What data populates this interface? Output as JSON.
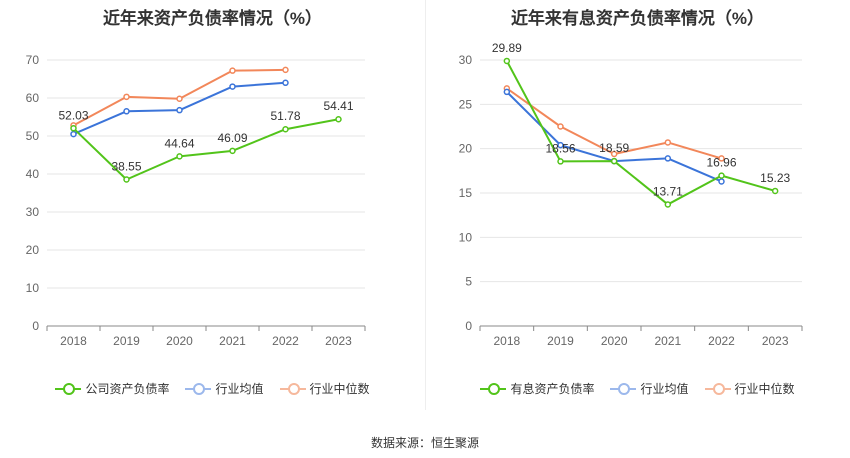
{
  "colors": {
    "company": "#52c41a",
    "industry_avg": "#3b74d9",
    "industry_median": "#f2875a"
  },
  "source_text": "数据来源：恒生聚源",
  "chart_data": [
    {
      "type": "line",
      "title": "近年来资产负债率情况（%）",
      "categories": [
        "2018",
        "2019",
        "2020",
        "2021",
        "2022",
        "2023"
      ],
      "ylim": [
        0,
        70
      ],
      "yticks": [
        0,
        10,
        20,
        30,
        40,
        50,
        60,
        70
      ],
      "grid": true,
      "legend_position": "bottom",
      "series": [
        {
          "name": "公司资产负债率",
          "values": [
            52.03,
            38.55,
            44.64,
            46.09,
            51.78,
            54.41
          ],
          "labels": [
            "52.03",
            "38.55",
            "44.64",
            "46.09",
            "51.78",
            "54.41"
          ]
        },
        {
          "name": "行业均值",
          "values": [
            50.5,
            56.5,
            56.8,
            63.0,
            64.0,
            null
          ]
        },
        {
          "name": "行业中位数",
          "values": [
            52.8,
            60.3,
            59.8,
            67.2,
            67.4,
            null
          ]
        }
      ]
    },
    {
      "type": "line",
      "title": "近年来有息资产负债率情况（%）",
      "categories": [
        "2018",
        "2019",
        "2020",
        "2021",
        "2022",
        "2023"
      ],
      "ylim": [
        0,
        30
      ],
      "yticks": [
        0,
        5,
        10,
        15,
        20,
        25,
        30
      ],
      "grid": true,
      "legend_position": "bottom",
      "series": [
        {
          "name": "有息资产负债率",
          "values": [
            29.89,
            18.56,
            18.59,
            13.71,
            16.96,
            15.23
          ],
          "labels": [
            "29.89",
            "18.56",
            "18.59",
            "13.71",
            "16.96",
            "15.23"
          ]
        },
        {
          "name": "行业均值",
          "values": [
            26.4,
            20.4,
            18.6,
            18.9,
            16.3,
            null
          ]
        },
        {
          "name": "行业中位数",
          "values": [
            26.8,
            22.5,
            19.4,
            20.7,
            18.9,
            null
          ]
        }
      ]
    }
  ]
}
